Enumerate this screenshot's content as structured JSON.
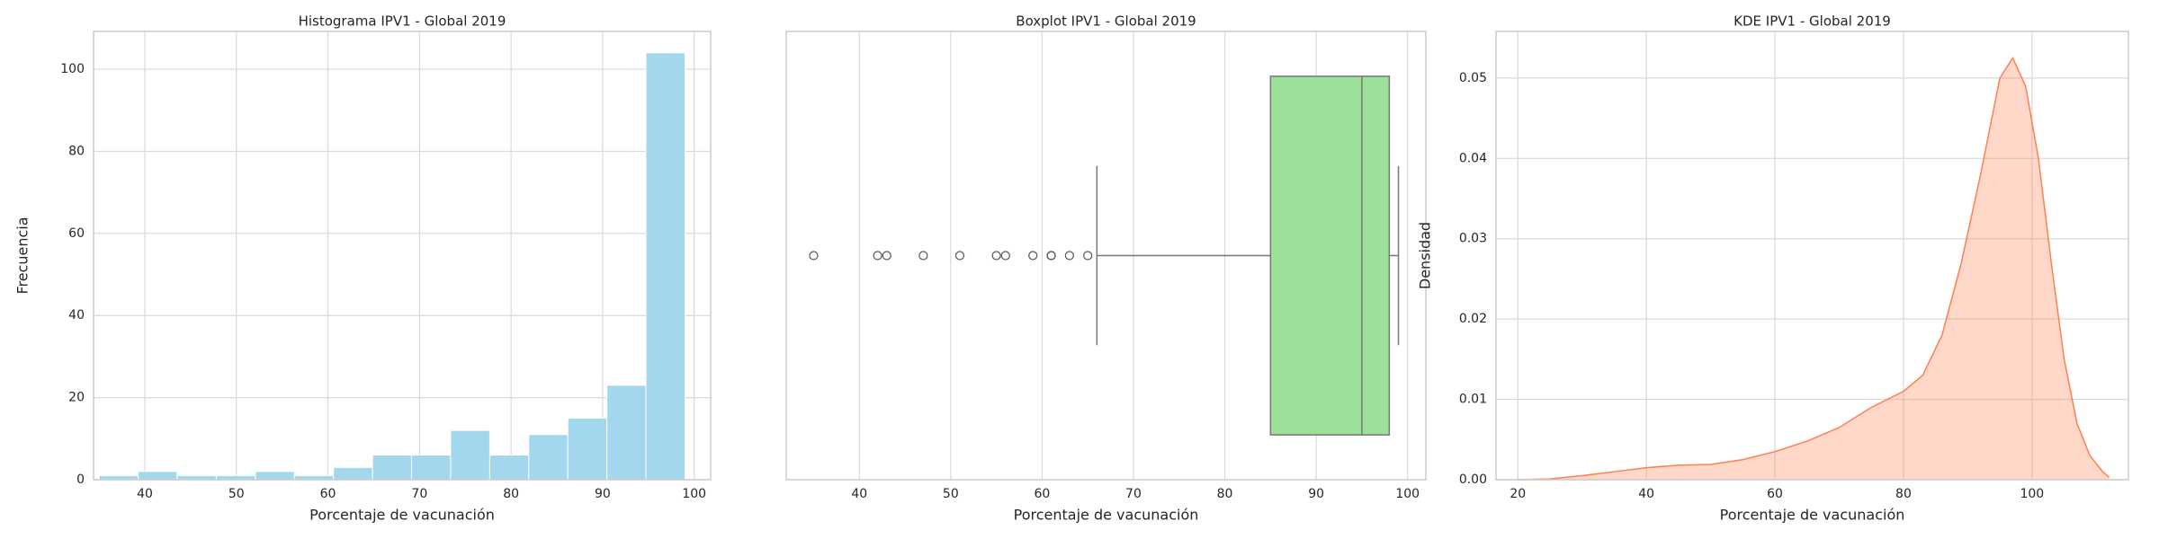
{
  "chart_data": [
    {
      "type": "histogram",
      "title": "Histograma IPV1 - Global 2019",
      "x_label": "Porcentaje de vacunación",
      "y_label": "Frecuencia",
      "bins": [
        35,
        39.27,
        43.53,
        47.8,
        52.07,
        56.33,
        60.6,
        64.87,
        69.13,
        73.4,
        77.67,
        81.93,
        86.2,
        90.47,
        94.73,
        99
      ],
      "values": [
        1,
        2,
        1,
        1,
        2,
        1,
        3,
        6,
        6,
        12,
        6,
        11,
        15,
        23,
        104
      ],
      "color": "#a3d7ee",
      "xlim": [
        34.4,
        101.8
      ],
      "ylim": [
        0,
        109.2
      ],
      "xticks": [
        40,
        50,
        60,
        70,
        80,
        90,
        100
      ],
      "yticks": [
        0,
        20,
        40,
        60,
        80,
        100
      ],
      "grid": true
    },
    {
      "type": "boxplot",
      "title": "Boxplot IPV1 - Global 2019",
      "x_label": "Porcentaje de vacunación",
      "whisker_low": 66,
      "q1": 85,
      "median": 95,
      "q3": 98,
      "whisker_high": 99,
      "outliers": [
        35,
        42,
        43,
        47,
        51,
        55,
        56,
        59,
        61,
        61,
        63,
        65
      ],
      "color": "#9de09a",
      "xlim": [
        32,
        102
      ],
      "xticks": [
        40,
        50,
        60,
        70,
        80,
        90,
        100
      ],
      "grid": true
    },
    {
      "type": "kde",
      "title": "KDE IPV1 - Global 2019",
      "x_label": "Porcentaje de vacunación",
      "y_label": "Densidad",
      "x": [
        20,
        25,
        30,
        35,
        40,
        45,
        50,
        55,
        60,
        65,
        70,
        75,
        80,
        83,
        86,
        89,
        92,
        95,
        97,
        99,
        101,
        103,
        105,
        107,
        109,
        111,
        112
      ],
      "values": [
        0,
        0.0001,
        0.0005,
        0.001,
        0.0015,
        0.0018,
        0.0019,
        0.0025,
        0.0035,
        0.0048,
        0.0065,
        0.009,
        0.011,
        0.013,
        0.018,
        0.027,
        0.038,
        0.05,
        0.0525,
        0.049,
        0.04,
        0.027,
        0.015,
        0.007,
        0.003,
        0.001,
        0.0003
      ],
      "color": "#ff7f50",
      "xlim": [
        16.6,
        115
      ],
      "ylim": [
        0,
        0.0558
      ],
      "xticks": [
        20,
        40,
        60,
        80,
        100
      ],
      "yticks": [
        {
          "value": 0,
          "label": "0.00"
        },
        {
          "value": 0.01,
          "label": "0.01"
        },
        {
          "value": 0.02,
          "label": "0.02"
        },
        {
          "value": 0.03,
          "label": "0.03"
        },
        {
          "value": 0.04,
          "label": "0.04"
        },
        {
          "value": 0.05,
          "label": "0.05"
        }
      ],
      "grid": true
    }
  ]
}
